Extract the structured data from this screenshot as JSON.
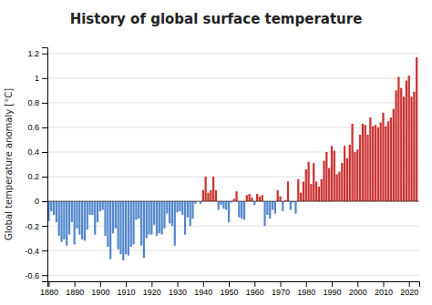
{
  "chart_data": {
    "type": "bar",
    "title": "History of global surface temperature",
    "ylabel": "Global temperature anomaly [°C]",
    "xlim": [
      1879.5,
      2024
    ],
    "ylim": [
      -0.65,
      1.25
    ],
    "yticks": [
      -0.6,
      -0.4,
      -0.2,
      0,
      0.2,
      0.4,
      0.6,
      0.8,
      1,
      1.2
    ],
    "xticks": [
      1880,
      1890,
      1900,
      1910,
      1920,
      1930,
      1940,
      1950,
      1960,
      1970,
      1980,
      1990,
      2000,
      2010,
      2020
    ],
    "grid": true,
    "x": [
      1880,
      1881,
      1882,
      1883,
      1884,
      1885,
      1886,
      1887,
      1888,
      1889,
      1890,
      1891,
      1892,
      1893,
      1894,
      1895,
      1896,
      1897,
      1898,
      1899,
      1900,
      1901,
      1902,
      1903,
      1904,
      1905,
      1906,
      1907,
      1908,
      1909,
      1910,
      1911,
      1912,
      1913,
      1914,
      1915,
      1916,
      1917,
      1918,
      1919,
      1920,
      1921,
      1922,
      1923,
      1924,
      1925,
      1926,
      1927,
      1928,
      1929,
      1930,
      1931,
      1932,
      1933,
      1934,
      1935,
      1936,
      1937,
      1938,
      1939,
      1940,
      1941,
      1942,
      1943,
      1944,
      1945,
      1946,
      1947,
      1948,
      1949,
      1950,
      1951,
      1952,
      1953,
      1954,
      1955,
      1956,
      1957,
      1958,
      1959,
      1960,
      1961,
      1962,
      1963,
      1964,
      1965,
      1966,
      1967,
      1968,
      1969,
      1970,
      1971,
      1972,
      1973,
      1974,
      1975,
      1976,
      1977,
      1978,
      1979,
      1980,
      1981,
      1982,
      1983,
      1984,
      1985,
      1986,
      1987,
      1988,
      1989,
      1990,
      1991,
      1992,
      1993,
      1994,
      1995,
      1996,
      1997,
      1998,
      1999,
      2000,
      2001,
      2002,
      2003,
      2004,
      2005,
      2006,
      2007,
      2008,
      2009,
      2010,
      2011,
      2012,
      2013,
      2014,
      2015,
      2016,
      2017,
      2018,
      2019,
      2020,
      2021,
      2022,
      2023
    ],
    "values": [
      -0.16,
      -0.08,
      -0.11,
      -0.17,
      -0.28,
      -0.33,
      -0.31,
      -0.36,
      -0.27,
      -0.17,
      -0.35,
      -0.22,
      -0.27,
      -0.31,
      -0.32,
      -0.23,
      -0.11,
      -0.11,
      -0.27,
      -0.17,
      -0.08,
      -0.07,
      -0.28,
      -0.37,
      -0.47,
      -0.26,
      -0.22,
      -0.39,
      -0.43,
      -0.48,
      -0.43,
      -0.44,
      -0.37,
      -0.35,
      -0.15,
      -0.14,
      -0.36,
      -0.46,
      -0.3,
      -0.27,
      -0.27,
      -0.19,
      -0.28,
      -0.26,
      -0.27,
      -0.22,
      -0.1,
      -0.18,
      -0.2,
      -0.36,
      -0.09,
      -0.08,
      -0.11,
      -0.27,
      -0.13,
      -0.2,
      -0.14,
      -0.02,
      -0.0,
      -0.02,
      0.09,
      0.2,
      0.07,
      0.09,
      0.2,
      0.09,
      -0.07,
      -0.03,
      -0.06,
      -0.07,
      -0.17,
      -0.01,
      0.02,
      0.08,
      -0.13,
      -0.14,
      -0.15,
      0.05,
      0.06,
      0.03,
      -0.03,
      0.06,
      0.04,
      0.05,
      -0.2,
      -0.11,
      -0.14,
      -0.07,
      -0.1,
      0.09,
      0.04,
      -0.08,
      0.01,
      0.16,
      -0.07,
      -0.01,
      -0.1,
      0.18,
      0.07,
      0.16,
      0.26,
      0.32,
      0.14,
      0.31,
      0.16,
      0.12,
      0.18,
      0.33,
      0.4,
      0.27,
      0.45,
      0.41,
      0.22,
      0.24,
      0.31,
      0.45,
      0.35,
      0.46,
      0.63,
      0.4,
      0.42,
      0.54,
      0.63,
      0.62,
      0.54,
      0.68,
      0.61,
      0.62,
      0.6,
      0.64,
      0.72,
      0.61,
      0.65,
      0.68,
      0.75,
      0.9,
      1.01,
      0.92,
      0.85,
      0.98,
      1.02,
      0.85,
      0.89,
      1.17
    ],
    "colors": [
      "#5588cc",
      "#5588cc",
      "#5588cc",
      "#5588cc",
      "#5588cc",
      "#5588cc",
      "#5588cc",
      "#5588cc",
      "#5588cc",
      "#5588cc",
      "#5588cc",
      "#5588cc",
      "#5588cc",
      "#5588cc",
      "#5588cc",
      "#5588cc",
      "#5588cc",
      "#5588cc",
      "#5588cc",
      "#5588cc",
      "#5588cc",
      "#5588cc",
      "#5588cc",
      "#5588cc",
      "#5588cc",
      "#5588cc",
      "#5588cc",
      "#5588cc",
      "#5588cc",
      "#5588cc",
      "#5588cc",
      "#5588cc",
      "#5588cc",
      "#5588cc",
      "#5588cc",
      "#5588cc",
      "#5588cc",
      "#5588cc",
      "#5588cc",
      "#5588cc",
      "#5588cc",
      "#5588cc",
      "#5588cc",
      "#5588cc",
      "#5588cc",
      "#5588cc",
      "#5588cc",
      "#5588cc",
      "#5588cc",
      "#5588cc",
      "#5588cc",
      "#5588cc",
      "#5588cc",
      "#5588cc",
      "#5588cc",
      "#5588cc",
      "#5588cc",
      "#5588cc",
      "#cc3333",
      "#5588cc",
      "#cc3333",
      "#cc3333",
      "#cc3333",
      "#cc3333",
      "#cc3333",
      "#cc3333",
      "#5588cc",
      "#5588cc",
      "#5588cc",
      "#5588cc",
      "#5588cc",
      "#5588cc",
      "#cc3333",
      "#cc3333",
      "#5588cc",
      "#5588cc",
      "#5588cc",
      "#cc3333",
      "#cc3333",
      "#cc3333",
      "#5588cc",
      "#cc3333",
      "#cc3333",
      "#cc3333",
      "#5588cc",
      "#5588cc",
      "#5588cc",
      "#5588cc",
      "#5588cc",
      "#cc3333",
      "#cc3333",
      "#5588cc",
      "#cc3333",
      "#cc3333",
      "#5588cc",
      "#5588cc",
      "#5588cc",
      "#cc3333",
      "#cc3333",
      "#cc3333",
      "#cc3333",
      "#cc3333",
      "#cc3333",
      "#cc3333",
      "#cc3333",
      "#cc3333",
      "#cc3333",
      "#cc3333",
      "#cc3333",
      "#cc3333",
      "#cc3333",
      "#cc3333",
      "#cc3333",
      "#cc3333",
      "#cc3333",
      "#cc3333",
      "#cc3333",
      "#cc3333",
      "#cc3333",
      "#cc3333",
      "#cc3333",
      "#cc3333",
      "#cc3333",
      "#cc3333",
      "#cc3333",
      "#cc3333",
      "#cc3333",
      "#cc3333",
      "#cc3333",
      "#cc3333",
      "#cc3333",
      "#cc3333",
      "#cc3333",
      "#cc3333",
      "#cc3333",
      "#cc3333",
      "#cc3333",
      "#cc3333",
      "#cc3333",
      "#cc3333",
      "#cc3333",
      "#cc3333",
      "#cc3333",
      "#cc3333"
    ]
  }
}
